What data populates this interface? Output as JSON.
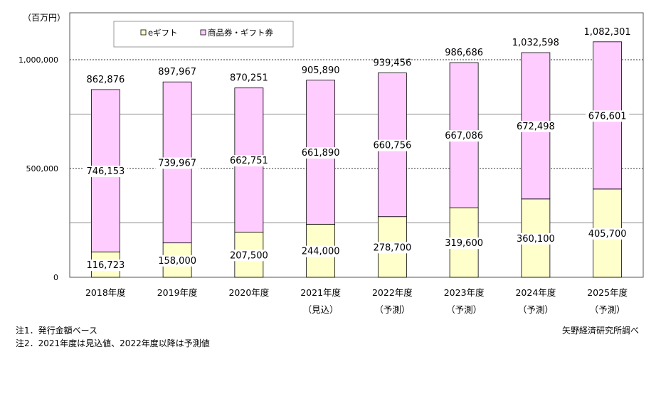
{
  "chart_data": {
    "type": "bar",
    "stacked": true,
    "unit_label": "（百万円）",
    "categories": [
      "2018年度",
      "2019年度",
      "2020年度",
      "2021年度",
      "2022年度",
      "2023年度",
      "2024年度",
      "2025年度"
    ],
    "category_sublabels": [
      "",
      "",
      "",
      "（見込）",
      "（予測）",
      "（予測）",
      "（予測）",
      "（予測）"
    ],
    "series": [
      {
        "name": "eギフト",
        "color": "#ffffcc",
        "values": [
          116723,
          158000,
          207500,
          244000,
          278700,
          319600,
          360100,
          405700
        ]
      },
      {
        "name": "商品券・ギフト券",
        "color": "#ffccff",
        "values": [
          746153,
          739967,
          662751,
          661890,
          660756,
          667086,
          672498,
          676601
        ]
      }
    ],
    "totals": [
      862876,
      897967,
      870251,
      905890,
      939456,
      986686,
      1032598,
      1082301
    ],
    "ylim": [
      0,
      1000000
    ],
    "yticks": [
      0,
      500000,
      1000000
    ],
    "ytick_labels": [
      "0",
      "500,000",
      "1,000,000"
    ],
    "minor_gridlines": [
      250000,
      750000
    ],
    "legend_position": "top-left",
    "grid": true
  },
  "notes": {
    "note1": "注1．発行金額ベース",
    "note2": "注2．2021年度は見込値、2022年度以降は予測値",
    "source": "矢野経済研究所調べ"
  }
}
